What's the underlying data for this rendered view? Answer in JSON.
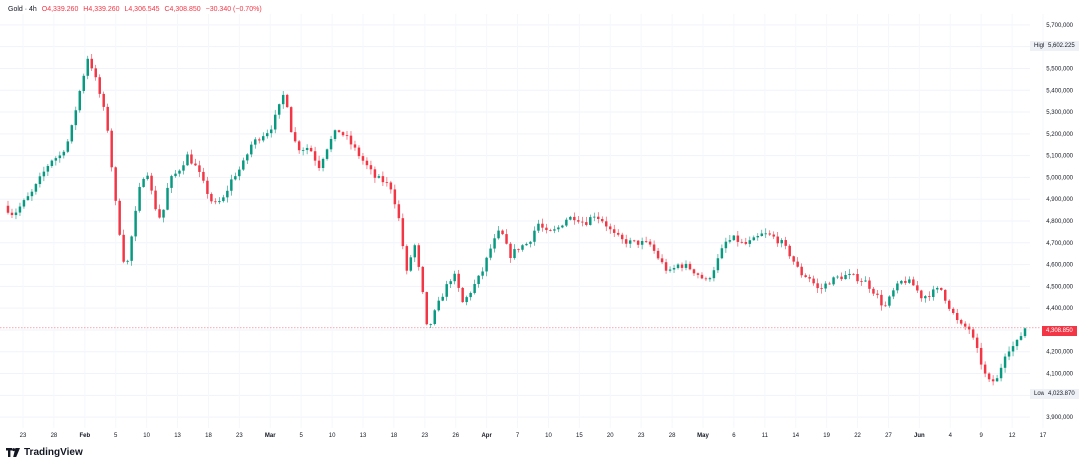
{
  "header": {
    "symbol": "Gold · 4h",
    "open": "O4,339.260",
    "high": "H4,339.260",
    "low": "L4,306.545",
    "close": "C4,308.850",
    "change": "−30.340 (−0.70%)"
  },
  "price_axis": {
    "high_label": "High",
    "high_value": "5,602.225",
    "low_label": "Low",
    "low_value": "4,023.870",
    "last_value": "4,308.850",
    "up_color": "#089981",
    "down_color": "#f23645",
    "last_color": "#f23645"
  },
  "branding": {
    "logo_icon": "tradingview-logo-icon",
    "name": "TradingView"
  },
  "chart_data": {
    "type": "candlestick",
    "title": "Gold · 4h",
    "ylim": [
      3850,
      5750
    ],
    "yticks": [
      3900,
      4000,
      4100,
      4200,
      4300,
      4400,
      4500,
      4600,
      4700,
      4800,
      4900,
      5000,
      5100,
      5200,
      5300,
      5400,
      5500,
      5600,
      5700
    ],
    "ytick_labels": [
      "3,900,000",
      "4,000,000",
      "4,100,000",
      "4,200,000",
      "4,300,000",
      "4,400,000",
      "4,500,000",
      "4,600,000",
      "4,700,000",
      "4,800,000",
      "4,900,000",
      "5,000,000",
      "5,100,000",
      "5,200,000",
      "5,300,000",
      "5,400,000",
      "5,500,000",
      "5,600,000",
      "5,700,000"
    ],
    "xticks": [
      "23",
      "28",
      "Feb",
      "5",
      "10",
      "13",
      "18",
      "23",
      "Mar",
      "5",
      "10",
      "13",
      "18",
      "23",
      "26",
      "Apr",
      "7",
      "10",
      "15",
      "20",
      "23",
      "28",
      "May",
      "6",
      "11",
      "14",
      "19",
      "22",
      "27",
      "Jun",
      "4",
      "9",
      "12",
      "17"
    ],
    "xtick_bold": [
      "Feb",
      "Mar",
      "Apr",
      "May",
      "Jun"
    ],
    "grid": true,
    "path": [
      {
        "t": 0,
        "p": 4870
      },
      {
        "t": 1,
        "p": 4830
      },
      {
        "t": 3,
        "p": 4930
      },
      {
        "t": 5,
        "p": 5080
      },
      {
        "t": 6,
        "p": 5100
      },
      {
        "t": 7,
        "p": 5180
      },
      {
        "t": 8,
        "p": 5380
      },
      {
        "t": 9,
        "p": 5560
      },
      {
        "t": 10,
        "p": 5420
      },
      {
        "t": 11,
        "p": 5250
      },
      {
        "t": 12,
        "p": 4850
      },
      {
        "t": 13,
        "p": 4560
      },
      {
        "t": 13.6,
        "p": 4720
      },
      {
        "t": 14.5,
        "p": 4950
      },
      {
        "t": 15.2,
        "p": 5050
      },
      {
        "t": 16,
        "p": 4880
      },
      {
        "t": 16.8,
        "p": 4800
      },
      {
        "t": 17.6,
        "p": 4980
      },
      {
        "t": 18.6,
        "p": 5030
      },
      {
        "t": 19.6,
        "p": 5100
      },
      {
        "t": 20.6,
        "p": 5040
      },
      {
        "t": 21.4,
        "p": 4960
      },
      {
        "t": 22.4,
        "p": 4870
      },
      {
        "t": 23.4,
        "p": 4900
      },
      {
        "t": 24.4,
        "p": 5000
      },
      {
        "t": 25.4,
        "p": 5050
      },
      {
        "t": 26.4,
        "p": 5150
      },
      {
        "t": 27.4,
        "p": 5190
      },
      {
        "t": 28.4,
        "p": 5220
      },
      {
        "t": 29.2,
        "p": 5300
      },
      {
        "t": 30,
        "p": 5400
      },
      {
        "t": 30.8,
        "p": 5180
      },
      {
        "t": 31.6,
        "p": 5130
      },
      {
        "t": 32.6,
        "p": 5140
      },
      {
        "t": 33.6,
        "p": 5050
      },
      {
        "t": 34.6,
        "p": 5150
      },
      {
        "t": 35.6,
        "p": 5220
      },
      {
        "t": 36.6,
        "p": 5180
      },
      {
        "t": 37.6,
        "p": 5120
      },
      {
        "t": 38.6,
        "p": 5060
      },
      {
        "t": 39.6,
        "p": 5000
      },
      {
        "t": 40.6,
        "p": 4980
      },
      {
        "t": 41.4,
        "p": 4950
      },
      {
        "t": 42.2,
        "p": 4800
      },
      {
        "t": 43,
        "p": 4560
      },
      {
        "t": 43.8,
        "p": 4700
      },
      {
        "t": 44.6,
        "p": 4500
      },
      {
        "t": 45.2,
        "p": 4290
      },
      {
        "t": 46,
        "p": 4380
      },
      {
        "t": 47,
        "p": 4480
      },
      {
        "t": 48,
        "p": 4560
      },
      {
        "t": 49,
        "p": 4420
      },
      {
        "t": 50,
        "p": 4490
      },
      {
        "t": 51,
        "p": 4560
      },
      {
        "t": 52,
        "p": 4680
      },
      {
        "t": 53,
        "p": 4760
      },
      {
        "t": 54,
        "p": 4640
      },
      {
        "t": 55,
        "p": 4680
      },
      {
        "t": 56,
        "p": 4700
      },
      {
        "t": 57,
        "p": 4790
      },
      {
        "t": 58,
        "p": 4740
      },
      {
        "t": 59,
        "p": 4760
      },
      {
        "t": 60,
        "p": 4810
      },
      {
        "t": 61,
        "p": 4820
      },
      {
        "t": 62,
        "p": 4790
      },
      {
        "t": 63,
        "p": 4830
      },
      {
        "t": 64,
        "p": 4800
      },
      {
        "t": 65,
        "p": 4740
      },
      {
        "t": 66,
        "p": 4710
      },
      {
        "t": 67,
        "p": 4700
      },
      {
        "t": 68,
        "p": 4700
      },
      {
        "t": 69,
        "p": 4690
      },
      {
        "t": 70,
        "p": 4620
      },
      {
        "t": 71,
        "p": 4560
      },
      {
        "t": 72,
        "p": 4600
      },
      {
        "t": 73,
        "p": 4590
      },
      {
        "t": 74,
        "p": 4560
      },
      {
        "t": 75,
        "p": 4520
      },
      {
        "t": 76,
        "p": 4600
      },
      {
        "t": 77,
        "p": 4700
      },
      {
        "t": 78,
        "p": 4720
      },
      {
        "t": 79,
        "p": 4690
      },
      {
        "t": 80,
        "p": 4710
      },
      {
        "t": 81,
        "p": 4740
      },
      {
        "t": 82,
        "p": 4730
      },
      {
        "t": 83,
        "p": 4700
      },
      {
        "t": 84,
        "p": 4640
      },
      {
        "t": 85,
        "p": 4560
      },
      {
        "t": 86,
        "p": 4540
      },
      {
        "t": 87,
        "p": 4480
      },
      {
        "t": 88,
        "p": 4520
      },
      {
        "t": 89,
        "p": 4540
      },
      {
        "t": 90,
        "p": 4550
      },
      {
        "t": 91,
        "p": 4540
      },
      {
        "t": 92,
        "p": 4520
      },
      {
        "t": 93,
        "p": 4470
      },
      {
        "t": 94,
        "p": 4400
      },
      {
        "t": 95,
        "p": 4480
      },
      {
        "t": 96,
        "p": 4530
      },
      {
        "t": 97,
        "p": 4510
      },
      {
        "t": 98,
        "p": 4450
      },
      {
        "t": 99,
        "p": 4470
      },
      {
        "t": 100,
        "p": 4490
      },
      {
        "t": 101,
        "p": 4400
      },
      {
        "t": 102,
        "p": 4320
      },
      {
        "t": 103,
        "p": 4310
      },
      {
        "t": 104,
        "p": 4190
      },
      {
        "t": 105,
        "p": 4060
      },
      {
        "t": 106,
        "p": 4070
      },
      {
        "t": 107,
        "p": 4210
      },
      {
        "t": 108,
        "p": 4230
      },
      {
        "t": 109,
        "p": 4310
      }
    ]
  }
}
